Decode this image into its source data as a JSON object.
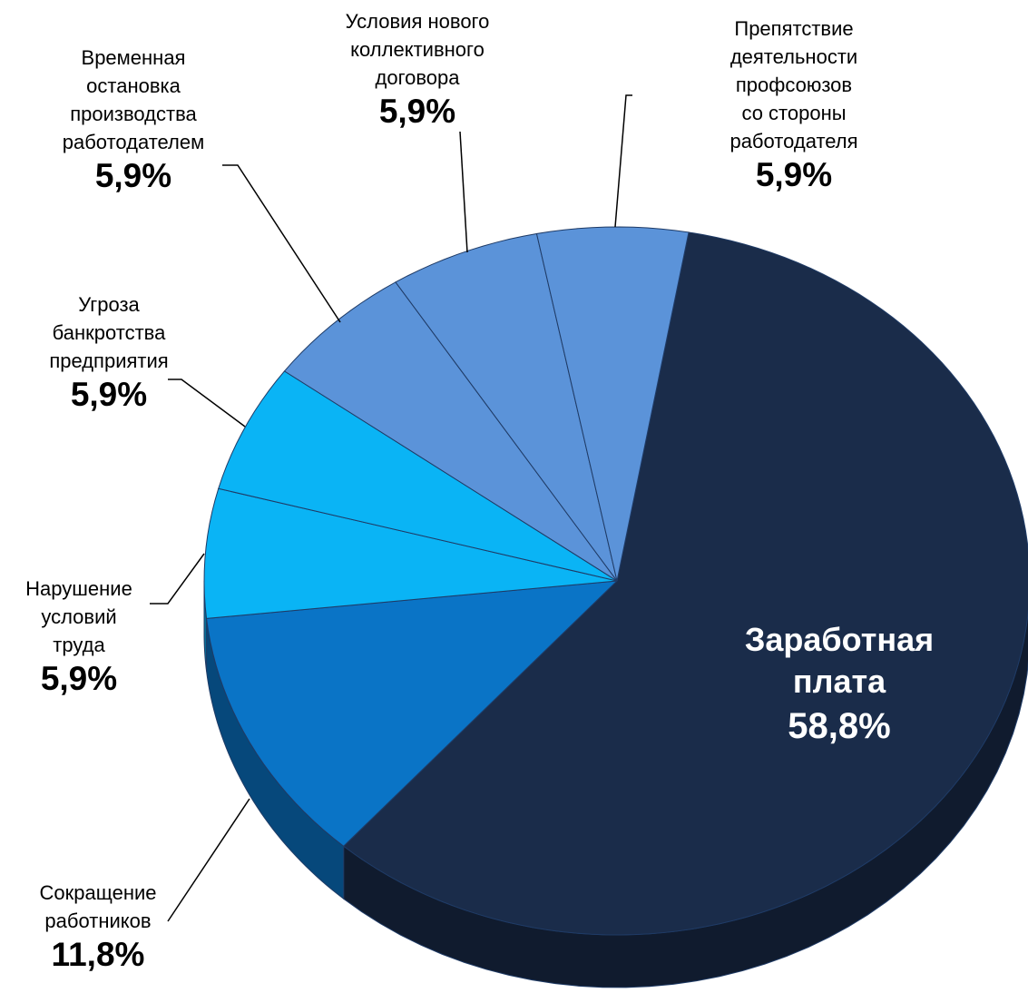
{
  "chart_data": {
    "type": "pie",
    "categories": [
      "Заработная\nплата",
      "Сокращение\nработников",
      "Нарушение\nусловий\nтруда",
      "Угроза\nбанкротства\nпредприятия",
      "Временная\nостановка\nпроизводства\nработодателем",
      "Условия нового\nколлективного\nдоговора",
      "Препятствие\nдеятельности профсоюзов\nсо стороны работодателя"
    ],
    "values": [
      58.8,
      11.8,
      5.9,
      5.9,
      5.9,
      5.9,
      5.9
    ],
    "value_labels": [
      "58,8%",
      "11,8%",
      "5,9%",
      "5,9%",
      "5,9%",
      "5,9%",
      "5,9%"
    ],
    "colors": [
      "#1a2c4a",
      "#0a74c6",
      "#0ab4f5",
      "#0ab4f5",
      "#5b93d9",
      "#5b93d9",
      "#5b93d9"
    ]
  }
}
